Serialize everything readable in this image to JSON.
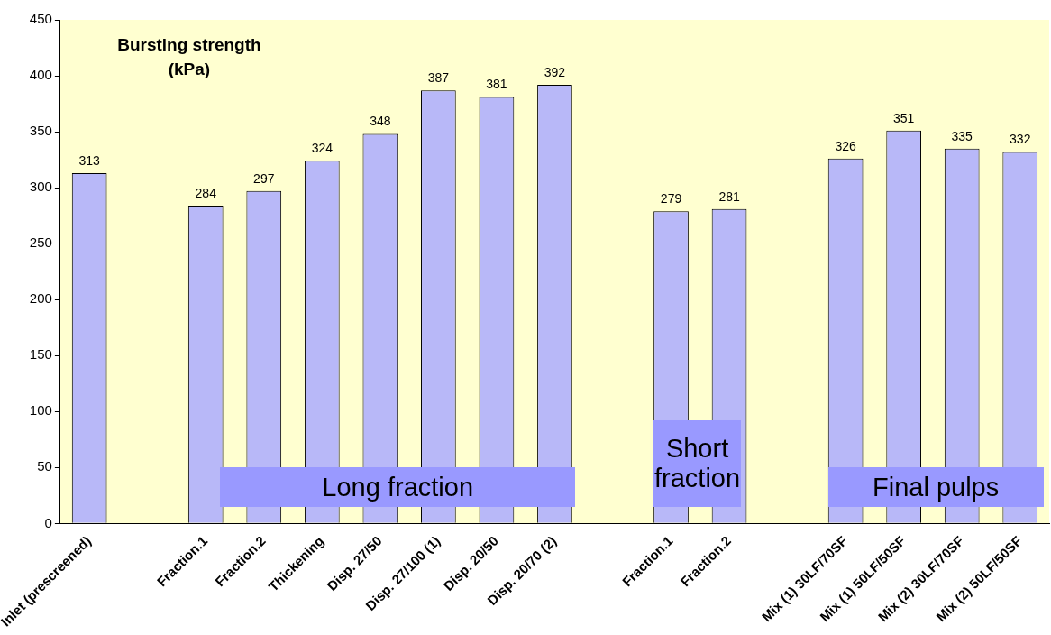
{
  "chart_data": {
    "type": "bar",
    "title": "Bursting strength (kPa)",
    "categories": [
      "Inlet (prescreened)",
      null,
      "Fraction.1",
      "Fraction.2",
      "Thickening",
      "Disp. 27/50",
      "Disp. 27/100 (1)",
      "Disp. 20/50",
      "Disp. 20/70 (2)",
      null,
      "Fraction.1",
      "Fraction.2",
      null,
      "Mix (1) 30LF/70SF",
      "Mix (1) 50LF/50SF",
      "Mix (2) 30LF/70SF",
      "Mix (2) 50LF/50SF"
    ],
    "values": [
      313,
      null,
      284,
      297,
      324,
      348,
      387,
      381,
      392,
      null,
      279,
      281,
      null,
      326,
      351,
      335,
      332
    ],
    "color": "#b8b8f8",
    "ylim": [
      0,
      450
    ],
    "yticks": [
      0,
      50,
      100,
      150,
      200,
      250,
      300,
      350,
      400,
      450
    ],
    "data_labels": true,
    "grid": false,
    "legend": false,
    "annotations": [
      "Long fraction",
      "Short fraction",
      "Final pulps"
    ]
  }
}
